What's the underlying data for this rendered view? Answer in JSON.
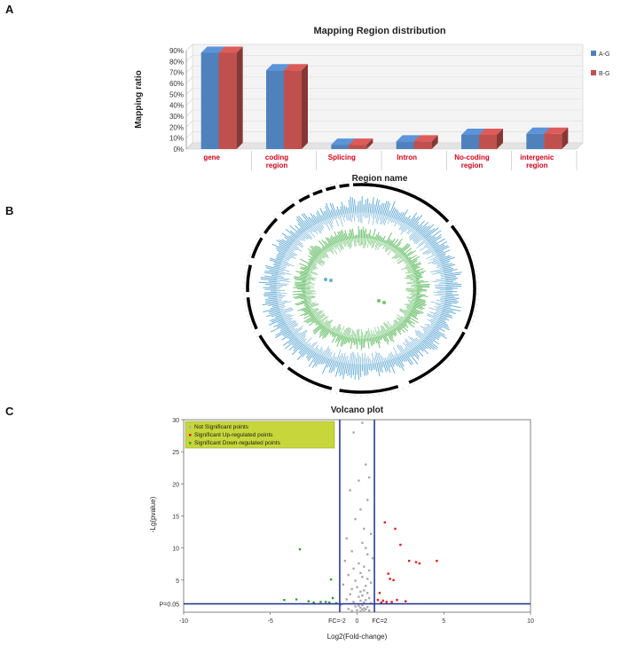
{
  "panels": {
    "a": "A",
    "b": "B",
    "c": "C"
  },
  "chart_data": [
    {
      "type": "bar",
      "title": "Mapping Region distribution",
      "xlabel": "Region name",
      "ylabel": "Mapping ratio",
      "categories": [
        "gene",
        "coding region",
        "Splicing",
        "Intron",
        "No-coding region",
        "intergenic region"
      ],
      "y_ticks": [
        "0%",
        "10%",
        "20%",
        "30%",
        "40%",
        "50%",
        "60%",
        "70%",
        "80%",
        "90%"
      ],
      "ylim": [
        0,
        90
      ],
      "series": [
        {
          "name": "A-G",
          "color": "#4f81bd",
          "values": [
            88,
            72,
            4,
            7,
            13,
            14
          ]
        },
        {
          "name": "B-G",
          "color": "#c0504d",
          "values": [
            88,
            72,
            4,
            7,
            13,
            14
          ]
        }
      ],
      "legend_position": "right"
    },
    {
      "type": "other",
      "title": "",
      "description_kind": "circos",
      "rings": [
        {
          "name": "outer-ideogram",
          "color": "#000000"
        },
        {
          "name": "outer-track",
          "color": "#6baed6"
        },
        {
          "name": "inner-track",
          "color": "#74c476"
        }
      ]
    },
    {
      "type": "scatter",
      "title": "Volcano plot",
      "xlabel": "Log2(Fold-change)",
      "ylabel": "-Lg(pvalue)",
      "xlim": [
        -10,
        10
      ],
      "ylim": [
        0,
        30
      ],
      "x_ticks": [
        "-10",
        "-5",
        "0",
        "5",
        "10"
      ],
      "y_ticks": [
        "5",
        "10",
        "15",
        "20",
        "25",
        "30"
      ],
      "threshold_labels": {
        "p": "P=0.05",
        "fc_neg": "FC=-2",
        "fc_pos": "FC=2"
      },
      "thresholds": {
        "p_y": 1.3,
        "fc_neg_x": -1,
        "fc_pos_x": 1
      },
      "legend": [
        {
          "name": "Not Significant points",
          "color": "#aaaaaa"
        },
        {
          "name": "Significant Up-regulated points",
          "color": "#e41a1c"
        },
        {
          "name": "Significant Down-regulated points",
          "color": "#33a02c"
        }
      ],
      "series": [
        {
          "name": "Significant Up-regulated points",
          "color": "#e41a1c",
          "x": [
            1.6,
            2.2,
            2.5,
            3.0,
            3.4,
            3.6,
            4.6,
            1.8,
            1.9,
            2.1,
            1.3,
            1.5,
            1.7,
            2.3,
            2.8,
            1.4,
            1.2,
            2.0
          ],
          "y": [
            14,
            13,
            10.5,
            8,
            7.8,
            7.6,
            8,
            6,
            5.2,
            5.0,
            3.0,
            1.8,
            1.6,
            1.9,
            1.7,
            1.5,
            1.9,
            1.6
          ]
        },
        {
          "name": "Significant Down-regulated points",
          "color": "#33a02c",
          "x": [
            -3.3,
            -1.5,
            -4.2,
            -3.5,
            -2.5,
            -2.8,
            -1.8,
            -1.4,
            -1.2,
            -2.1,
            -1.6
          ],
          "y": [
            9.8,
            5.1,
            1.9,
            2.0,
            1.5,
            1.7,
            1.6,
            2.2,
            1.4,
            1.6,
            1.5
          ]
        },
        {
          "name": "Not Significant points",
          "color": "#aaaaaa",
          "x": [
            0.3,
            -0.2,
            0.5,
            0.7,
            0.1,
            -0.4,
            0.6,
            0.2,
            -0.1,
            0.4,
            0.8,
            -0.6,
            0.3,
            0.5,
            -0.3,
            0.6,
            0.9,
            -0.7,
            0.1,
            0.4,
            -0.2,
            0.7,
            0.2,
            -0.5,
            0.3,
            0.6,
            -0.1,
            0.8,
            -0.8,
            0.5,
            0.0,
            -0.3,
            0.4,
            0.2,
            0.6,
            -0.4,
            0.3,
            0.1,
            0.7,
            -0.6,
            0.5,
            0.2,
            -0.2,
            0.4,
            0.8,
            -0.9,
            0.3,
            0.1,
            -0.1,
            0.6,
            0.2,
            0.4,
            -0.5,
            0.5,
            0.3,
            0.0,
            0.7,
            -0.3,
            0.2,
            0.4
          ],
          "y": [
            29.5,
            28,
            23,
            21,
            20.5,
            19,
            17.5,
            16,
            14.5,
            13,
            12.2,
            11.5,
            10.8,
            10,
            9.5,
            9,
            8.4,
            8,
            7.6,
            7.1,
            6.8,
            6.5,
            6.1,
            5.8,
            5.5,
            5.2,
            4.9,
            4.6,
            4.3,
            4.1,
            3.9,
            3.6,
            3.4,
            3.2,
            3.0,
            2.8,
            2.6,
            2.4,
            2.2,
            2.0,
            1.9,
            1.8,
            1.6,
            1.5,
            1.4,
            1.2,
            1.1,
            1.0,
            0.9,
            0.8,
            0.7,
            0.6,
            0.5,
            0.45,
            0.4,
            0.3,
            0.25,
            0.2,
            0.15,
            0.1
          ]
        }
      ]
    }
  ]
}
